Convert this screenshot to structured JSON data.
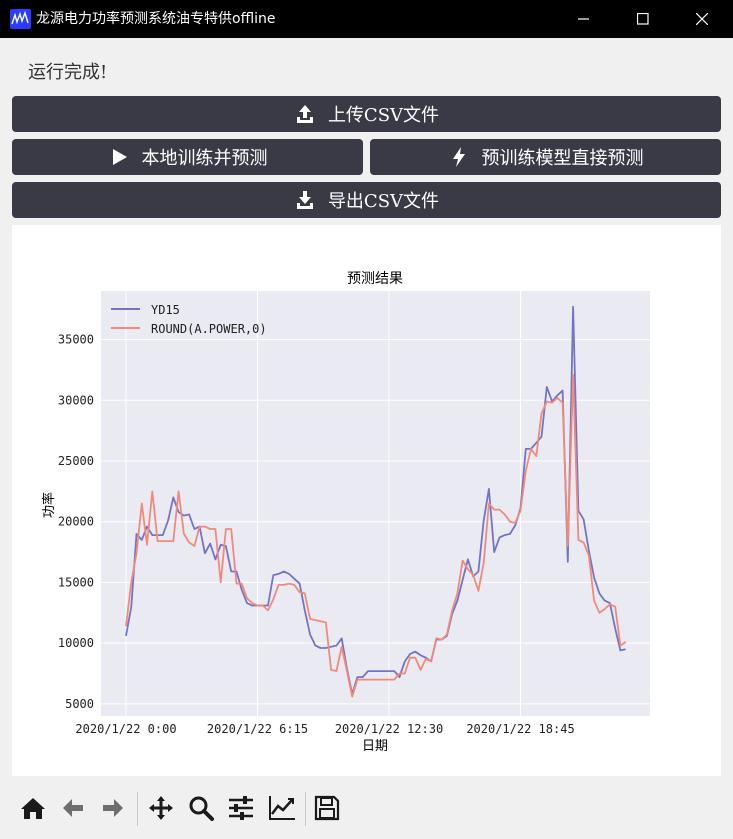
{
  "window": {
    "title": "龙源电力功率预测系统油专特供offline",
    "icon": "app-logo-icon",
    "controls": [
      "minimize-icon",
      "maximize-icon",
      "close-icon"
    ]
  },
  "status": {
    "text": "运行完成!"
  },
  "buttons": {
    "upload": {
      "label": "上传CSV文件",
      "icon": "upload-icon"
    },
    "train": {
      "label": "本地训练并预测",
      "icon": "play-icon"
    },
    "pretrained": {
      "label": "预训练模型直接预测",
      "icon": "lightning-icon"
    },
    "export": {
      "label": "导出CSV文件",
      "icon": "download-icon"
    }
  },
  "colors": {
    "button_bg": "#3a3a46",
    "plot_bg": "#eaeaf2",
    "series_1": "#7474c4",
    "series_2": "#f08a7a"
  },
  "toolbar": {
    "items": [
      "home-icon",
      "back-arrow-icon",
      "forward-arrow-icon",
      "pan-icon",
      "zoom-icon",
      "configure-subplots-icon",
      "edit-axes-icon",
      "save-icon"
    ]
  },
  "chart_data": {
    "type": "line",
    "title": "预测结果",
    "xlabel": "日期",
    "ylabel": "功率",
    "x_ticks": [
      "2020/1/22 0:00",
      "2020/1/22 6:15",
      "2020/1/22 12:30",
      "2020/1/22 18:45"
    ],
    "y_ticks": [
      5000,
      10000,
      15000,
      20000,
      25000,
      30000,
      35000
    ],
    "ylim": [
      4000,
      39000
    ],
    "x_interval_minutes": 15,
    "x_points_per_tick": 25,
    "grid": true,
    "legend_position": "top-left",
    "series": [
      {
        "name": "YD15",
        "color": "#7474c4",
        "values": [
          10600,
          13000,
          19000,
          18500,
          19600,
          18900,
          18900,
          18900,
          20100,
          22000,
          20800,
          20500,
          20600,
          19400,
          19600,
          17400,
          18200,
          16900,
          18100,
          18000,
          15900,
          15900,
          14400,
          13300,
          13100,
          13100,
          13100,
          13100,
          15600,
          15700,
          15900,
          15700,
          15300,
          14900,
          12700,
          10700,
          9800,
          9600,
          9600,
          9700,
          9800,
          10400,
          7900,
          5800,
          7200,
          7200,
          7700,
          7700,
          7700,
          7700,
          7700,
          7700,
          7200,
          8500,
          9100,
          9300,
          9000,
          8800,
          8500,
          10300,
          10300,
          10600,
          12400,
          13500,
          15200,
          16900,
          15500,
          15900,
          20100,
          22700,
          17500,
          18700,
          18900,
          19000,
          19700,
          21100,
          26000,
          26000,
          26500,
          27000,
          31100,
          29900,
          30400,
          30800,
          16700,
          37700,
          20900,
          20200,
          17600,
          15400,
          14100,
          13500,
          13300,
          11200,
          9400,
          9500
        ]
      },
      {
        "name": "ROUND(A.POWER,0)",
        "color": "#f08a7a",
        "values": [
          11400,
          15000,
          17400,
          21500,
          18100,
          22500,
          18400,
          18400,
          18400,
          18400,
          22500,
          19000,
          18300,
          18000,
          19600,
          19600,
          19400,
          19400,
          15000,
          19400,
          19400,
          14900,
          14900,
          13700,
          13300,
          13100,
          13100,
          12700,
          13600,
          14800,
          14800,
          14900,
          14800,
          14200,
          14100,
          12000,
          11900,
          11800,
          11700,
          7800,
          7700,
          9700,
          7700,
          5600,
          7000,
          7000,
          7000,
          7000,
          7000,
          7000,
          7000,
          7000,
          7500,
          7500,
          8800,
          8800,
          7800,
          8700,
          8500,
          10400,
          10300,
          10700,
          12700,
          14100,
          16800,
          16100,
          15600,
          14300,
          16600,
          21500,
          21000,
          21000,
          20600,
          20000,
          19900,
          20900,
          24200,
          26000,
          25400,
          28900,
          29900,
          29800,
          30200,
          29800,
          18000,
          32100,
          18500,
          18300,
          17200,
          13500,
          12500,
          12800,
          13200,
          13000,
          9800,
          10100
        ]
      }
    ]
  }
}
